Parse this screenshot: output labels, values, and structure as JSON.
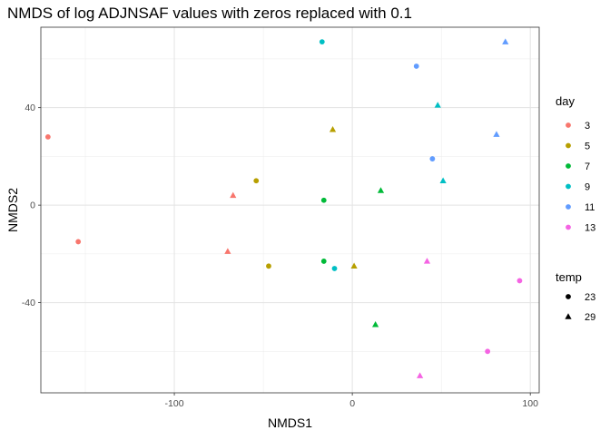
{
  "chart_data": {
    "type": "scatter",
    "title": "NMDS of log ADJNSAF values with zeros replaced with 0.1",
    "xlabel": "NMDS1",
    "ylabel": "NMDS2",
    "xlim": [
      -175,
      105
    ],
    "ylim": [
      -77,
      73
    ],
    "x_ticks": [
      -100,
      0,
      100
    ],
    "x_tick_labels": [
      "-100",
      "0",
      "100"
    ],
    "y_ticks": [
      -40,
      0,
      40
    ],
    "y_tick_labels": [
      "-40",
      "0",
      "40"
    ],
    "grid": true,
    "legend_position": "right",
    "legend_day": {
      "title": "day",
      "items": [
        {
          "label": "3",
          "color": "#F8766D"
        },
        {
          "label": "5",
          "color": "#B79F00"
        },
        {
          "label": "7",
          "color": "#00BA38"
        },
        {
          "label": "9",
          "color": "#00BFC4"
        },
        {
          "label": "11",
          "color": "#619CFF"
        },
        {
          "label": "13",
          "color": "#F564E3"
        }
      ]
    },
    "legend_temp": {
      "title": "temp",
      "items": [
        {
          "label": "23",
          "shape": "circle"
        },
        {
          "label": "29",
          "shape": "triangle"
        }
      ]
    },
    "points": [
      {
        "x": -171,
        "y": 28,
        "day": "3",
        "temp": "23"
      },
      {
        "x": -154,
        "y": -15,
        "day": "3",
        "temp": "23"
      },
      {
        "x": -67,
        "y": 4,
        "day": "3",
        "temp": "29"
      },
      {
        "x": -70,
        "y": -19,
        "day": "3",
        "temp": "29"
      },
      {
        "x": -54,
        "y": 10,
        "day": "5",
        "temp": "23"
      },
      {
        "x": -47,
        "y": -25,
        "day": "5",
        "temp": "23"
      },
      {
        "x": -11,
        "y": 31,
        "day": "5",
        "temp": "29"
      },
      {
        "x": 1,
        "y": -25,
        "day": "5",
        "temp": "29"
      },
      {
        "x": -16,
        "y": 2,
        "day": "7",
        "temp": "23"
      },
      {
        "x": -16,
        "y": -23,
        "day": "7",
        "temp": "23"
      },
      {
        "x": 16,
        "y": 6,
        "day": "7",
        "temp": "29"
      },
      {
        "x": 13,
        "y": -49,
        "day": "7",
        "temp": "29"
      },
      {
        "x": -17,
        "y": 67,
        "day": "9",
        "temp": "23"
      },
      {
        "x": -10,
        "y": -26,
        "day": "9",
        "temp": "23"
      },
      {
        "x": 48,
        "y": 41,
        "day": "9",
        "temp": "29"
      },
      {
        "x": 51,
        "y": 10,
        "day": "9",
        "temp": "29"
      },
      {
        "x": 36,
        "y": 57,
        "day": "11",
        "temp": "23"
      },
      {
        "x": 45,
        "y": 19,
        "day": "11",
        "temp": "23"
      },
      {
        "x": 86,
        "y": 67,
        "day": "11",
        "temp": "29"
      },
      {
        "x": 81,
        "y": 29,
        "day": "11",
        "temp": "29"
      },
      {
        "x": 76,
        "y": -60,
        "day": "13",
        "temp": "23"
      },
      {
        "x": 94,
        "y": -31,
        "day": "13",
        "temp": "23"
      },
      {
        "x": 42,
        "y": -23,
        "day": "13",
        "temp": "29"
      },
      {
        "x": 38,
        "y": -70,
        "day": "13",
        "temp": "29"
      }
    ]
  }
}
